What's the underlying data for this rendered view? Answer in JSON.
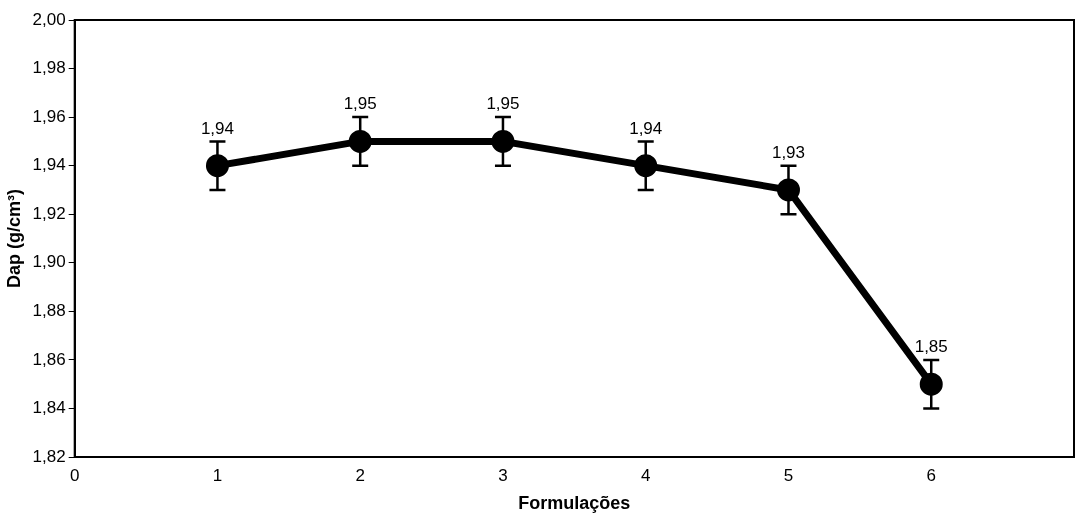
{
  "chart_data": {
    "type": "line",
    "xlabel": "Formulações",
    "ylabel": "Dap (g/cm³)",
    "x": [
      1,
      2,
      3,
      4,
      5,
      6
    ],
    "series": [
      {
        "color": "#000000",
        "values": [
          1.94,
          1.95,
          1.95,
          1.94,
          1.93,
          1.85
        ],
        "errors": [
          0.01,
          0.01,
          0.01,
          0.01,
          0.01,
          0.01
        ],
        "value_labels": [
          "1,94",
          "1,95",
          "1,95",
          "1,94",
          "1,93",
          "1,85"
        ]
      }
    ],
    "xlim": [
      0,
      7
    ],
    "xticks": [
      0,
      1,
      2,
      3,
      4,
      5,
      6
    ],
    "ylim": [
      1.82,
      2.0
    ],
    "yticks": [
      {
        "value": 1.82,
        "label": "1,82"
      },
      {
        "value": 1.84,
        "label": "1,84"
      },
      {
        "value": 1.86,
        "label": "1,86"
      },
      {
        "value": 1.88,
        "label": "1,88"
      },
      {
        "value": 1.9,
        "label": "1,90"
      },
      {
        "value": 1.92,
        "label": "1,92"
      },
      {
        "value": 1.94,
        "label": "1,94"
      },
      {
        "value": 1.96,
        "label": "1,96"
      },
      {
        "value": 1.98,
        "label": "1,98"
      },
      {
        "value": 2.0,
        "label": "2,00"
      }
    ],
    "grid": false,
    "legend": false,
    "marker": "circle",
    "line_style": "solid"
  }
}
